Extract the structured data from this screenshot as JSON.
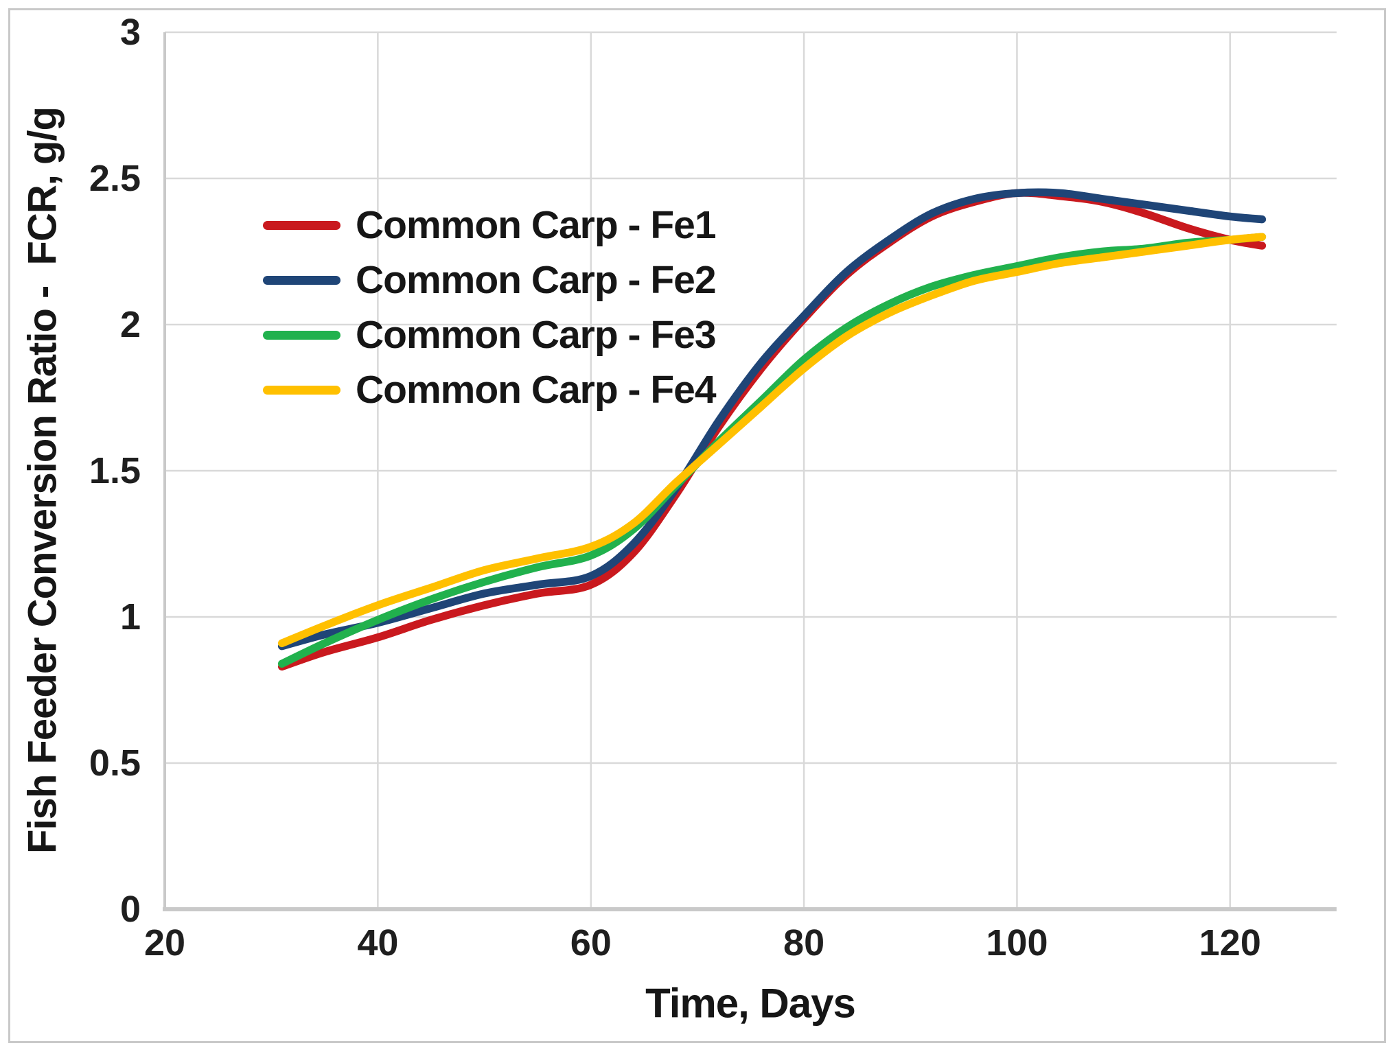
{
  "figure": {
    "background": "#FFFFFF",
    "border_color": "#C9C9C9"
  },
  "chart_data": {
    "type": "line",
    "title": "",
    "xlabel": "Time, Days",
    "ylabel": "Fish Feeder Conversion Ratio -  FCR, g/g",
    "xlim": [
      20,
      130
    ],
    "ylim": [
      0,
      3
    ],
    "x_ticks": [
      20,
      40,
      60,
      80,
      100,
      120
    ],
    "y_ticks": [
      0,
      0.5,
      1,
      1.5,
      2,
      2.5,
      3
    ],
    "grid": true,
    "grid_color": "#D9D9D9",
    "axis_color": "#C9C9C9",
    "text_color": "#1F1F1F",
    "line_width": 11.5,
    "legend_position": "upper-left-inside",
    "x": [
      31,
      35,
      40,
      45,
      50,
      55,
      60,
      64,
      68,
      72,
      76,
      80,
      84,
      88,
      92,
      96,
      100,
      104,
      108,
      112,
      116,
      120,
      123
    ],
    "series": [
      {
        "name": "Common Carp - Fe1",
        "color": "#C9191E",
        "values": [
          0.83,
          0.88,
          0.93,
          0.99,
          1.04,
          1.08,
          1.11,
          1.22,
          1.42,
          1.65,
          1.85,
          2.02,
          2.17,
          2.28,
          2.37,
          2.42,
          2.45,
          2.44,
          2.42,
          2.38,
          2.33,
          2.29,
          2.27
        ]
      },
      {
        "name": "Common Carp - Fe2",
        "color": "#1F4577",
        "values": [
          0.9,
          0.94,
          0.98,
          1.03,
          1.08,
          1.11,
          1.14,
          1.25,
          1.44,
          1.67,
          1.87,
          2.03,
          2.18,
          2.29,
          2.38,
          2.43,
          2.45,
          2.45,
          2.43,
          2.41,
          2.39,
          2.37,
          2.36
        ]
      },
      {
        "name": "Common Carp - Fe3",
        "color": "#21B14D",
        "values": [
          0.84,
          0.91,
          0.99,
          1.06,
          1.12,
          1.17,
          1.21,
          1.3,
          1.45,
          1.6,
          1.74,
          1.88,
          1.99,
          2.07,
          2.13,
          2.17,
          2.2,
          2.23,
          2.25,
          2.26,
          2.28,
          2.29,
          2.3
        ]
      },
      {
        "name": "Common Carp - Fe4",
        "color": "#FFC000",
        "values": [
          0.91,
          0.97,
          1.04,
          1.1,
          1.16,
          1.2,
          1.24,
          1.32,
          1.46,
          1.59,
          1.72,
          1.85,
          1.96,
          2.04,
          2.1,
          2.15,
          2.18,
          2.21,
          2.23,
          2.25,
          2.27,
          2.29,
          2.3
        ]
      }
    ]
  }
}
